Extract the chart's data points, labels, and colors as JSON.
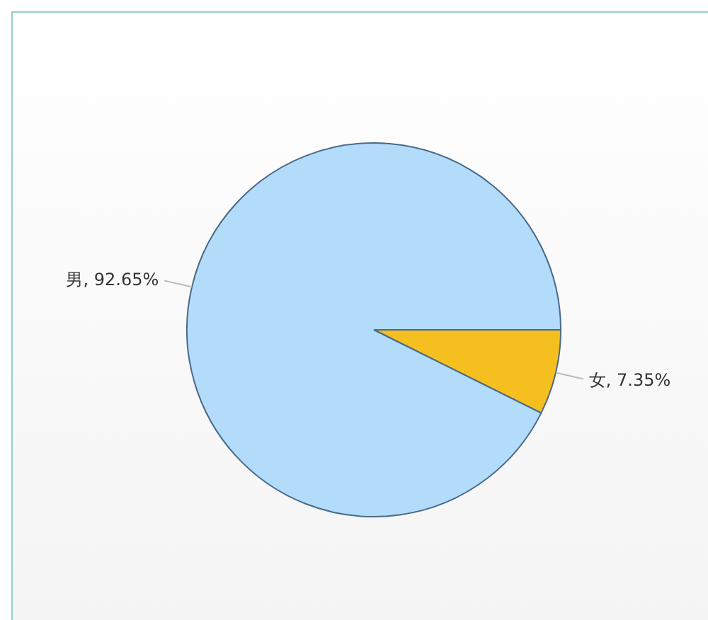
{
  "chart_data": {
    "type": "pie",
    "categories": [
      "女",
      "男"
    ],
    "values": [
      7.35,
      92.65
    ],
    "value_labels": [
      "7.35%",
      "92.65%"
    ],
    "colors": [
      "#f5c01f",
      "#b3dcfb"
    ]
  }
}
